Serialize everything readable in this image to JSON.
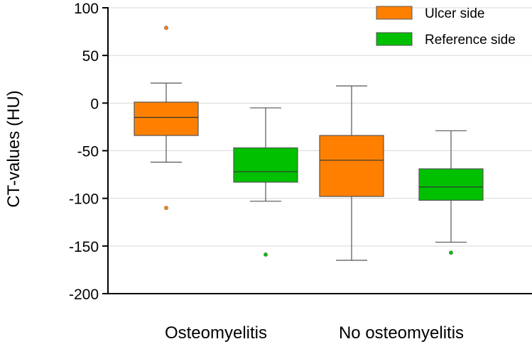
{
  "chart_data": {
    "type": "box",
    "ylabel": "CT-values (HU)",
    "xlabel": "",
    "ylim": [
      -200,
      100
    ],
    "yticks": [
      100,
      50,
      0,
      -50,
      -100,
      -150,
      -200
    ],
    "grid": "horizontal",
    "legend_position": "top-right",
    "categories": [
      "Osteomyelitis",
      "No osteomyelitis"
    ],
    "series": [
      {
        "name": "Ulcer side",
        "color": "#ff8000",
        "boxes": [
          {
            "category": "Osteomyelitis",
            "whisker_low": -62,
            "q1": -34,
            "median": -15,
            "q3": 1,
            "whisker_high": 21,
            "outliers": [
              79,
              -110
            ]
          },
          {
            "category": "No osteomyelitis",
            "whisker_low": -165,
            "q1": -98,
            "median": -60,
            "q3": -34,
            "whisker_high": 18,
            "outliers": []
          }
        ]
      },
      {
        "name": "Reference side",
        "color": "#00c000",
        "boxes": [
          {
            "category": "Osteomyelitis",
            "whisker_low": -103,
            "q1": -83,
            "median": -72,
            "q3": -47,
            "whisker_high": -5,
            "outliers": [
              -159
            ]
          },
          {
            "category": "No osteomyelitis",
            "whisker_low": -146,
            "q1": -102,
            "median": -88,
            "q3": -69,
            "whisker_high": -29,
            "outliers": [
              -157
            ]
          }
        ]
      }
    ]
  }
}
